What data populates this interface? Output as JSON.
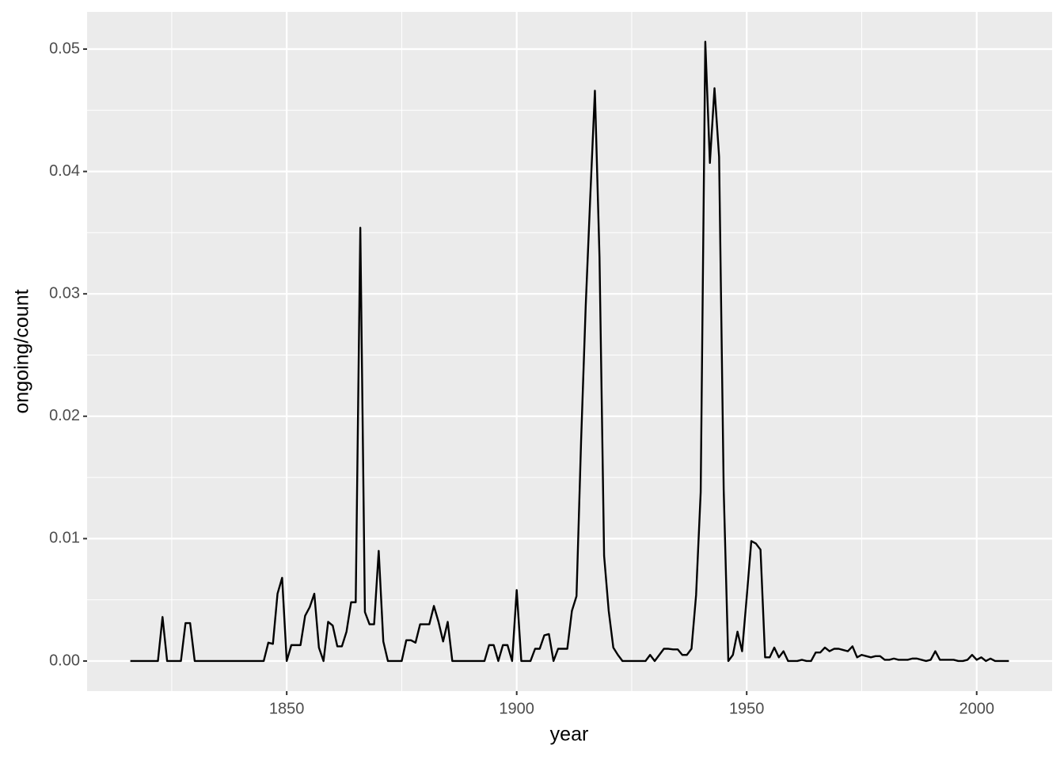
{
  "chart_data": {
    "type": "line",
    "x_label": "year",
    "y_label": "ongoing/count",
    "x": [
      1816,
      1817,
      1818,
      1819,
      1820,
      1821,
      1822,
      1823,
      1824,
      1825,
      1826,
      1827,
      1828,
      1829,
      1830,
      1831,
      1832,
      1833,
      1834,
      1835,
      1836,
      1837,
      1838,
      1839,
      1840,
      1841,
      1842,
      1843,
      1844,
      1845,
      1846,
      1847,
      1848,
      1849,
      1850,
      1851,
      1852,
      1853,
      1854,
      1855,
      1856,
      1857,
      1858,
      1859,
      1860,
      1861,
      1862,
      1863,
      1864,
      1865,
      1866,
      1867,
      1868,
      1869,
      1870,
      1871,
      1872,
      1873,
      1874,
      1875,
      1876,
      1877,
      1878,
      1879,
      1880,
      1881,
      1882,
      1883,
      1884,
      1885,
      1886,
      1887,
      1888,
      1889,
      1890,
      1891,
      1892,
      1893,
      1894,
      1895,
      1896,
      1897,
      1898,
      1899,
      1900,
      1901,
      1902,
      1903,
      1904,
      1905,
      1906,
      1907,
      1908,
      1909,
      1910,
      1911,
      1912,
      1913,
      1914,
      1915,
      1916,
      1917,
      1918,
      1919,
      1920,
      1921,
      1922,
      1923,
      1924,
      1925,
      1926,
      1927,
      1928,
      1929,
      1930,
      1931,
      1932,
      1933,
      1934,
      1935,
      1936,
      1937,
      1938,
      1939,
      1940,
      1941,
      1942,
      1943,
      1944,
      1945,
      1946,
      1947,
      1948,
      1949,
      1950,
      1951,
      1952,
      1953,
      1954,
      1955,
      1956,
      1957,
      1958,
      1959,
      1960,
      1961,
      1962,
      1963,
      1964,
      1965,
      1966,
      1967,
      1968,
      1969,
      1970,
      1971,
      1972,
      1973,
      1974,
      1975,
      1976,
      1977,
      1978,
      1979,
      1980,
      1981,
      1982,
      1983,
      1984,
      1985,
      1986,
      1987,
      1988,
      1989,
      1990,
      1991,
      1992,
      1993,
      1994,
      1995,
      1996,
      1997,
      1998,
      1999,
      2000,
      2001,
      2002,
      2003,
      2004,
      2005,
      2006,
      2007
    ],
    "values": [
      0,
      0,
      0,
      0,
      0,
      0,
      0,
      0.0036,
      0,
      0,
      0,
      0,
      0.0031,
      0.0031,
      0,
      0,
      0,
      0,
      0,
      0,
      0,
      0,
      0,
      0,
      0,
      0,
      0,
      0,
      0,
      0,
      0.0015,
      0.0014,
      0.0055,
      0.0068,
      0,
      0.0013,
      0.0013,
      0.0013,
      0.0037,
      0.0044,
      0.0055,
      0.0011,
      0,
      0.0032,
      0.0029,
      0.0012,
      0.0012,
      0.0024,
      0.0048,
      0.0048,
      0.0354,
      0.004,
      0.003,
      0.003,
      0.009,
      0.0016,
      0,
      0,
      0,
      0,
      0.0017,
      0.0017,
      0.0015,
      0.003,
      0.003,
      0.003,
      0.0045,
      0.0032,
      0.0016,
      0.0032,
      0,
      0,
      0,
      0,
      0,
      0,
      0,
      0,
      0.0013,
      0.0013,
      0,
      0.0013,
      0.0013,
      0,
      0.0058,
      0,
      0,
      0,
      0.001,
      0.001,
      0.0021,
      0.0022,
      0,
      0.001,
      0.001,
      0.001,
      0.0041,
      0.0053,
      0.018,
      0.029,
      0.038,
      0.0466,
      0.033,
      0.0086,
      0.0041,
      0.0011,
      0.0005,
      0,
      0,
      0,
      0,
      0,
      0,
      0.0005,
      0,
      0.0005,
      0.001,
      0.001,
      0.00095,
      0.00095,
      0.0005,
      0.0005,
      0.001,
      0.0054,
      0.0138,
      0.0506,
      0.0407,
      0.0468,
      0.0412,
      0.014,
      0,
      0.0005,
      0.0024,
      0.0008,
      0.0052,
      0.0098,
      0.0096,
      0.0091,
      0.0003,
      0.0003,
      0.0011,
      0.0003,
      0.0008,
      0,
      0,
      0,
      0.0001,
      0,
      0,
      0.0007,
      0.0007,
      0.0011,
      0.0008,
      0.001,
      0.001,
      0.0009,
      0.0008,
      0.0012,
      0.0003,
      0.0005,
      0.0004,
      0.0003,
      0.0004,
      0.0004,
      0.0001,
      0.0001,
      0.0002,
      0.0001,
      0.0001,
      0.0001,
      0.0002,
      0.0002,
      0.0001,
      0,
      0.0001,
      0.0008,
      0.0001,
      0.0001,
      0.0001,
      0.0001,
      0,
      0,
      0.0001,
      0.0005,
      0.0001,
      0.0003,
      0,
      0.0002,
      0,
      0,
      0,
      0
    ],
    "color": "#000000",
    "xlim": [
      1806.6,
      2016.4
    ],
    "ylim": [
      -0.00246,
      0.05304
    ],
    "xticks": [
      1850,
      1900,
      1950,
      2000
    ],
    "yticks": [
      {
        "value": 0,
        "label": "0.00"
      },
      0.01,
      0.02,
      0.03,
      0.04,
      0.05
    ],
    "grid": true
  }
}
